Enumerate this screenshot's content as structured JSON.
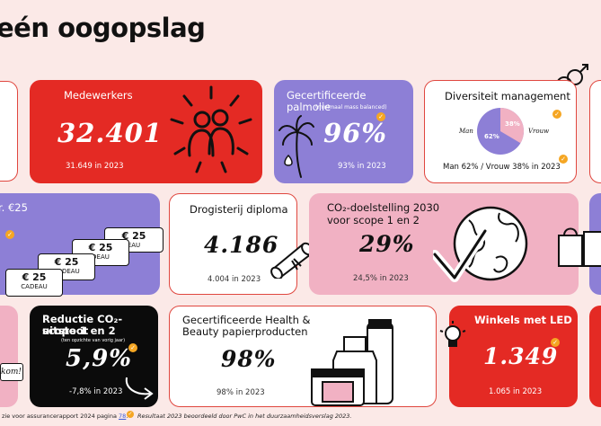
{
  "page_title": "eén oogopslag",
  "cards": {
    "medewerkers": {
      "label": "Medewerkers",
      "value": "32.401",
      "sub": "31.649 in 2023"
    },
    "palmolie": {
      "label": "Gecertificeerde palmolie",
      "note": "(minimaal mass balanced)",
      "value": "96%",
      "sub": "93% in 2023"
    },
    "diversiteit": {
      "label": "Diversiteit management",
      "man_label": "Man",
      "vrouw_label": "Vrouw",
      "man_pct": "62%",
      "vrouw_pct": "38%",
      "sub": "Man 62% / Vrouw 38% in 2023"
    },
    "cadeau": {
      "label_partial": "r. €25",
      "voucher_amount": "€ 25",
      "voucher_text": "CADEAU",
      "voucher_text_partial1": "EAU",
      "voucher_text_partial2": "DEAU"
    },
    "drogisterij": {
      "label": "Drogisterij diploma",
      "value": "4.186",
      "sub": "4.004 in 2023"
    },
    "co2_doel": {
      "label_line1": "CO₂-doelstelling 2030",
      "label_line2": "voor scope 1 en 2",
      "value": "29%",
      "sub": "24,5% in 2023"
    },
    "reductie": {
      "label_line1": "Reductie CO₂-uitstoot",
      "label_line2": "scope 1 en 2",
      "note": "(ten opzichte van vorig jaar)",
      "value": "5,9%",
      "sub": "-7,8% in 2023"
    },
    "papier": {
      "label_line1": "Gecertificeerde Health &",
      "label_line2": "Beauty papierproducten",
      "value": "98%",
      "sub": "98% in 2023"
    },
    "led": {
      "label": "Winkels met LED",
      "value": "1.349",
      "sub": "1.065 in 2023"
    },
    "welkom": {
      "text": "kom!"
    }
  },
  "footer": {
    "left": "zie voor assurancerapport 2024 pagina",
    "left_link": "78",
    "right": "Resultaat 2023 beoordeeld door PwC in het duurzaamheidsverslag 2023."
  },
  "colors": {
    "red": "#e42a24",
    "purple": "#8d7fd6",
    "pink": "#f1b1c3",
    "orange_check": "#f5a623",
    "background": "#fbe9e7"
  },
  "icons": [
    "people-icon",
    "palm-tree-icon",
    "gender-symbols-icon",
    "pie-chart-icon",
    "diploma-scroll-icon",
    "globe-check-icon",
    "arrow-icon",
    "cosmetics-bottles-icon",
    "lightbulb-icon",
    "shopping-bag-icon",
    "check-badge-icon"
  ]
}
